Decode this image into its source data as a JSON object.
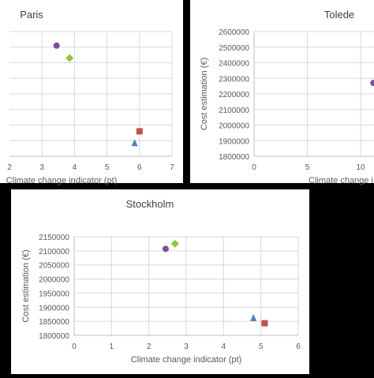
{
  "chart_data": [
    {
      "type": "scatter",
      "title": "Paris",
      "xlabel": "Climate change indicator (pt)",
      "ylabel": "",
      "xlim": [
        2,
        7
      ],
      "ylim": [
        1800000,
        2600000
      ],
      "x_ticks": [
        "2",
        "3",
        "4",
        "5",
        "6",
        "7"
      ],
      "y_ticks": [],
      "grid": true,
      "clipped": "left",
      "points": [
        {
          "x": 3.45,
          "y": 2510000,
          "marker": "circle",
          "color": "#7B4FA0"
        },
        {
          "x": 3.85,
          "y": 2430000,
          "marker": "diamond",
          "color": "#8DC63F"
        },
        {
          "x": 6.0,
          "y": 1960000,
          "marker": "square",
          "color": "#C0504D"
        },
        {
          "x": 5.85,
          "y": 1885000,
          "marker": "triangle",
          "color": "#4F81BD"
        }
      ]
    },
    {
      "type": "scatter",
      "title": "Tolede",
      "xlabel": "Climate change i",
      "ylabel": "Cost estimation (€)",
      "xlim": [
        0,
        12
      ],
      "ylim": [
        1800000,
        2600000
      ],
      "x_ticks": [
        "0",
        "5",
        "10"
      ],
      "y_ticks": [
        "2600000",
        "2500000",
        "2400000",
        "2300000",
        "2200000",
        "2100000",
        "2000000",
        "1900000",
        "1800000"
      ],
      "grid": true,
      "clipped": "right",
      "points": [
        {
          "x": 11.2,
          "y": 2270000,
          "marker": "circle",
          "color": "#7B4FA0"
        }
      ]
    },
    {
      "type": "scatter",
      "title": "Stockholm",
      "xlabel": "Climate change indicator (pt)",
      "ylabel": "Cost estimation (€)",
      "xlim": [
        0,
        6
      ],
      "ylim": [
        1800000,
        2150000
      ],
      "x_ticks": [
        "0",
        "1",
        "2",
        "3",
        "4",
        "5",
        "6"
      ],
      "y_ticks": [
        "2150000",
        "2100000",
        "2050000",
        "2000000",
        "1950000",
        "1900000",
        "1850000",
        "1800000"
      ],
      "grid": true,
      "clipped": "none",
      "points": [
        {
          "x": 2.45,
          "y": 2107000,
          "marker": "circle",
          "color": "#7B4FA0"
        },
        {
          "x": 2.7,
          "y": 2125000,
          "marker": "diamond",
          "color": "#8DC63F"
        },
        {
          "x": 4.8,
          "y": 1862000,
          "marker": "triangle",
          "color": "#4F81BD"
        },
        {
          "x": 5.1,
          "y": 1843000,
          "marker": "square",
          "color": "#C0504D"
        }
      ]
    }
  ]
}
